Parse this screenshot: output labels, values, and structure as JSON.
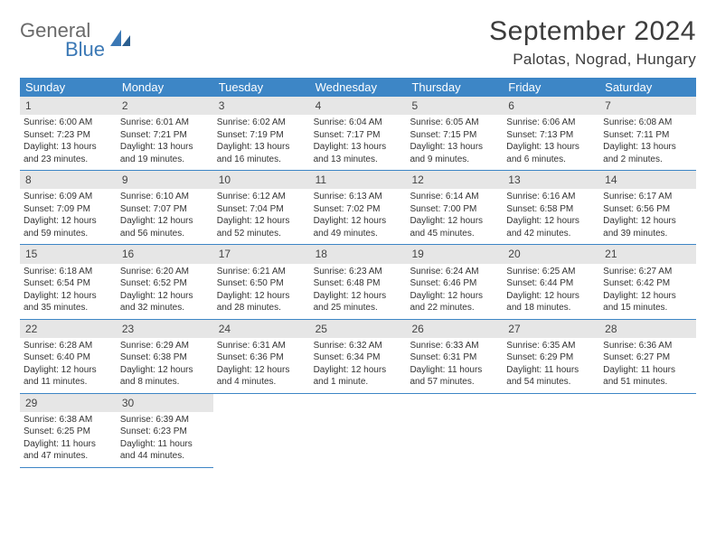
{
  "logo": {
    "line1": "General",
    "line2": "Blue"
  },
  "title": "September 2024",
  "location": "Palotas, Nograd, Hungary",
  "colors": {
    "header_bg": "#3d86c6",
    "header_text": "#ffffff",
    "daynum_bg": "#e6e6e6",
    "border": "#3d86c6",
    "logo_gray": "#6a6a6a",
    "logo_blue": "#3b78b5"
  },
  "dow": [
    "Sunday",
    "Monday",
    "Tuesday",
    "Wednesday",
    "Thursday",
    "Friday",
    "Saturday"
  ],
  "weeks": [
    [
      {
        "n": "1",
        "sr": "Sunrise: 6:00 AM",
        "ss": "Sunset: 7:23 PM",
        "d1": "Daylight: 13 hours",
        "d2": "and 23 minutes."
      },
      {
        "n": "2",
        "sr": "Sunrise: 6:01 AM",
        "ss": "Sunset: 7:21 PM",
        "d1": "Daylight: 13 hours",
        "d2": "and 19 minutes."
      },
      {
        "n": "3",
        "sr": "Sunrise: 6:02 AM",
        "ss": "Sunset: 7:19 PM",
        "d1": "Daylight: 13 hours",
        "d2": "and 16 minutes."
      },
      {
        "n": "4",
        "sr": "Sunrise: 6:04 AM",
        "ss": "Sunset: 7:17 PM",
        "d1": "Daylight: 13 hours",
        "d2": "and 13 minutes."
      },
      {
        "n": "5",
        "sr": "Sunrise: 6:05 AM",
        "ss": "Sunset: 7:15 PM",
        "d1": "Daylight: 13 hours",
        "d2": "and 9 minutes."
      },
      {
        "n": "6",
        "sr": "Sunrise: 6:06 AM",
        "ss": "Sunset: 7:13 PM",
        "d1": "Daylight: 13 hours",
        "d2": "and 6 minutes."
      },
      {
        "n": "7",
        "sr": "Sunrise: 6:08 AM",
        "ss": "Sunset: 7:11 PM",
        "d1": "Daylight: 13 hours",
        "d2": "and 2 minutes."
      }
    ],
    [
      {
        "n": "8",
        "sr": "Sunrise: 6:09 AM",
        "ss": "Sunset: 7:09 PM",
        "d1": "Daylight: 12 hours",
        "d2": "and 59 minutes."
      },
      {
        "n": "9",
        "sr": "Sunrise: 6:10 AM",
        "ss": "Sunset: 7:07 PM",
        "d1": "Daylight: 12 hours",
        "d2": "and 56 minutes."
      },
      {
        "n": "10",
        "sr": "Sunrise: 6:12 AM",
        "ss": "Sunset: 7:04 PM",
        "d1": "Daylight: 12 hours",
        "d2": "and 52 minutes."
      },
      {
        "n": "11",
        "sr": "Sunrise: 6:13 AM",
        "ss": "Sunset: 7:02 PM",
        "d1": "Daylight: 12 hours",
        "d2": "and 49 minutes."
      },
      {
        "n": "12",
        "sr": "Sunrise: 6:14 AM",
        "ss": "Sunset: 7:00 PM",
        "d1": "Daylight: 12 hours",
        "d2": "and 45 minutes."
      },
      {
        "n": "13",
        "sr": "Sunrise: 6:16 AM",
        "ss": "Sunset: 6:58 PM",
        "d1": "Daylight: 12 hours",
        "d2": "and 42 minutes."
      },
      {
        "n": "14",
        "sr": "Sunrise: 6:17 AM",
        "ss": "Sunset: 6:56 PM",
        "d1": "Daylight: 12 hours",
        "d2": "and 39 minutes."
      }
    ],
    [
      {
        "n": "15",
        "sr": "Sunrise: 6:18 AM",
        "ss": "Sunset: 6:54 PM",
        "d1": "Daylight: 12 hours",
        "d2": "and 35 minutes."
      },
      {
        "n": "16",
        "sr": "Sunrise: 6:20 AM",
        "ss": "Sunset: 6:52 PM",
        "d1": "Daylight: 12 hours",
        "d2": "and 32 minutes."
      },
      {
        "n": "17",
        "sr": "Sunrise: 6:21 AM",
        "ss": "Sunset: 6:50 PM",
        "d1": "Daylight: 12 hours",
        "d2": "and 28 minutes."
      },
      {
        "n": "18",
        "sr": "Sunrise: 6:23 AM",
        "ss": "Sunset: 6:48 PM",
        "d1": "Daylight: 12 hours",
        "d2": "and 25 minutes."
      },
      {
        "n": "19",
        "sr": "Sunrise: 6:24 AM",
        "ss": "Sunset: 6:46 PM",
        "d1": "Daylight: 12 hours",
        "d2": "and 22 minutes."
      },
      {
        "n": "20",
        "sr": "Sunrise: 6:25 AM",
        "ss": "Sunset: 6:44 PM",
        "d1": "Daylight: 12 hours",
        "d2": "and 18 minutes."
      },
      {
        "n": "21",
        "sr": "Sunrise: 6:27 AM",
        "ss": "Sunset: 6:42 PM",
        "d1": "Daylight: 12 hours",
        "d2": "and 15 minutes."
      }
    ],
    [
      {
        "n": "22",
        "sr": "Sunrise: 6:28 AM",
        "ss": "Sunset: 6:40 PM",
        "d1": "Daylight: 12 hours",
        "d2": "and 11 minutes."
      },
      {
        "n": "23",
        "sr": "Sunrise: 6:29 AM",
        "ss": "Sunset: 6:38 PM",
        "d1": "Daylight: 12 hours",
        "d2": "and 8 minutes."
      },
      {
        "n": "24",
        "sr": "Sunrise: 6:31 AM",
        "ss": "Sunset: 6:36 PM",
        "d1": "Daylight: 12 hours",
        "d2": "and 4 minutes."
      },
      {
        "n": "25",
        "sr": "Sunrise: 6:32 AM",
        "ss": "Sunset: 6:34 PM",
        "d1": "Daylight: 12 hours",
        "d2": "and 1 minute."
      },
      {
        "n": "26",
        "sr": "Sunrise: 6:33 AM",
        "ss": "Sunset: 6:31 PM",
        "d1": "Daylight: 11 hours",
        "d2": "and 57 minutes."
      },
      {
        "n": "27",
        "sr": "Sunrise: 6:35 AM",
        "ss": "Sunset: 6:29 PM",
        "d1": "Daylight: 11 hours",
        "d2": "and 54 minutes."
      },
      {
        "n": "28",
        "sr": "Sunrise: 6:36 AM",
        "ss": "Sunset: 6:27 PM",
        "d1": "Daylight: 11 hours",
        "d2": "and 51 minutes."
      }
    ],
    [
      {
        "n": "29",
        "sr": "Sunrise: 6:38 AM",
        "ss": "Sunset: 6:25 PM",
        "d1": "Daylight: 11 hours",
        "d2": "and 47 minutes."
      },
      {
        "n": "30",
        "sr": "Sunrise: 6:39 AM",
        "ss": "Sunset: 6:23 PM",
        "d1": "Daylight: 11 hours",
        "d2": "and 44 minutes."
      },
      null,
      null,
      null,
      null,
      null
    ]
  ]
}
